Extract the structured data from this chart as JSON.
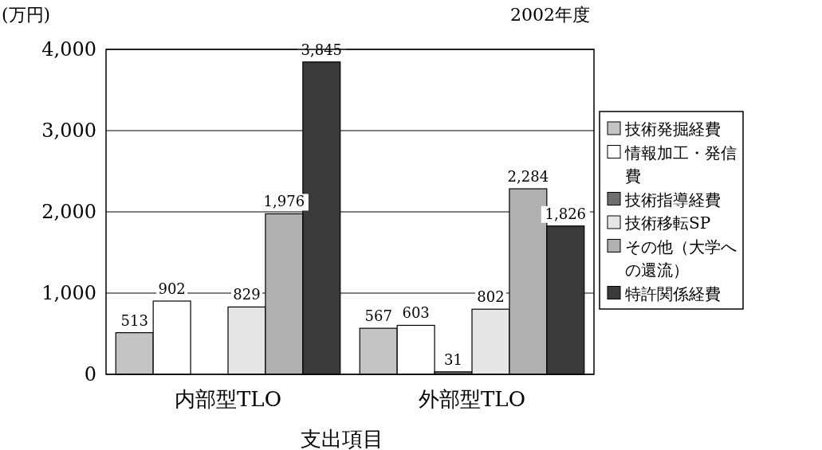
{
  "chart_data": {
    "type": "bar",
    "title": "2002年度",
    "ylabel": "(万円)",
    "xlabel": "支出項目",
    "categories": [
      "内部型TLO",
      "外部型TLO"
    ],
    "series": [
      {
        "name": "技術発掘経費",
        "color": "#c4c4c4",
        "values": [
          513,
          567
        ],
        "value_labels": [
          "513",
          "567"
        ]
      },
      {
        "name": "情報加工・発信費",
        "color": "#ffffff",
        "values": [
          902,
          603
        ],
        "value_labels": [
          "902",
          "603"
        ]
      },
      {
        "name": "技術指導経費",
        "color": "#6e6e6e",
        "values": [
          null,
          31
        ],
        "value_labels": [
          null,
          "31"
        ]
      },
      {
        "name": "技術移転SP",
        "color": "#e6e6e6",
        "values": [
          829,
          802
        ],
        "value_labels": [
          "829",
          "802"
        ]
      },
      {
        "name": "その他（大学への還流）",
        "color": "#b0b0b0",
        "values": [
          1976,
          2284
        ],
        "value_labels": [
          "1,976",
          "2,284"
        ]
      },
      {
        "name": "特許関係経費",
        "color": "#3a3a3a",
        "values": [
          3845,
          1826
        ],
        "value_labels": [
          "3,845",
          "1,826"
        ]
      }
    ],
    "ylim": [
      0,
      4000
    ],
    "yticks": [
      {
        "value": 0,
        "label": "0"
      },
      {
        "value": 1000,
        "label": "1,000"
      },
      {
        "value": 2000,
        "label": "2,000"
      },
      {
        "value": 3000,
        "label": "3,000"
      },
      {
        "value": 4000,
        "label": "4,000"
      }
    ],
    "grid": "y",
    "legend": "right"
  }
}
